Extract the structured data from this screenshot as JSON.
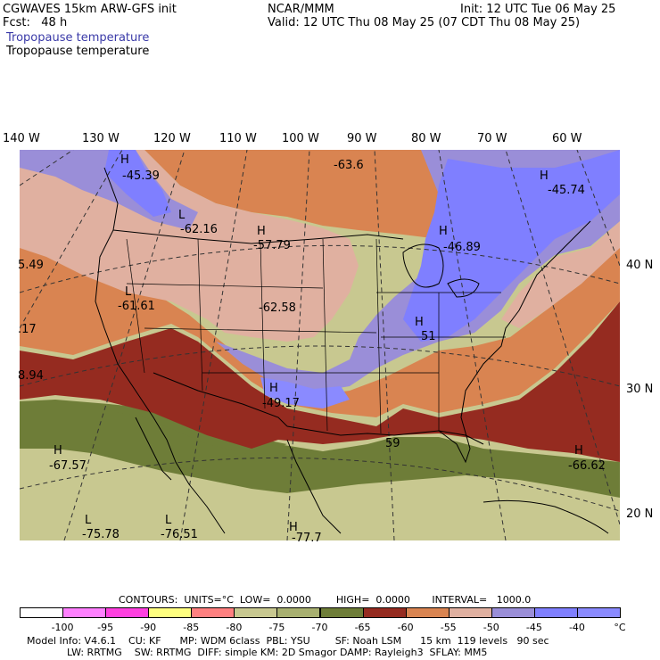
{
  "header": {
    "left1": "CGWAVES 15km ARW-GFS init",
    "left2": "Fcst:   48 h",
    "center": "NCAR/MMM",
    "init": "Init: 12 UTC Tue 06 May 25",
    "valid": "Valid: 12 UTC Thu 08 May 25 (07 CDT Thu 08 May 25)",
    "field_label_blue": "Tropopause temperature",
    "field_label_black": "Tropopause temperature"
  },
  "lon_labels": [
    "140 W",
    "130 W",
    "120 W",
    "110 W",
    "100 W",
    "90 W",
    "80 W",
    "70 W",
    "60 W"
  ],
  "lat_labels": [
    "40 N",
    "30 N",
    "20 N"
  ],
  "map_labels": [
    {
      "letter": "H",
      "value": "-45.39"
    },
    {
      "letter": "",
      "value": "-63.6"
    },
    {
      "letter": "H",
      "value": "-45.74"
    },
    {
      "letter": "L",
      "value": "-62.16"
    },
    {
      "letter": "H",
      "value": "-57.79"
    },
    {
      "letter": "H",
      "value": "-46.89"
    },
    {
      "letter": "",
      "value": "5.49"
    },
    {
      "letter": "L",
      "value": "-61.61"
    },
    {
      "letter": "",
      "value": "-62.58"
    },
    {
      "letter": "H",
      "value": "51"
    },
    {
      "letter": "",
      "value": ".17"
    },
    {
      "letter": "",
      "value": "8.94"
    },
    {
      "letter": "H",
      "value": "-49.17"
    },
    {
      "letter": "",
      "value": "59"
    },
    {
      "letter": "H",
      "value": "-67.57"
    },
    {
      "letter": "H",
      "value": "-66.62"
    },
    {
      "letter": "L",
      "value": "-75.78"
    },
    {
      "letter": "L",
      "value": "-76.51"
    },
    {
      "letter": "H",
      "value": "-77.7"
    }
  ],
  "contour_info": {
    "text": "CONTOURS:  UNITS=°C  LOW=  0.0000        HIGH=  0.0000       INTERVAL=   1000.0"
  },
  "colorbar": {
    "colors": [
      "#ffffff",
      "#ff80ff",
      "#ff40e0",
      "#ffff80",
      "#ff8080",
      "#c8c890",
      "#a8b070",
      "#6e7d38",
      "#952b20",
      "#d98451",
      "#e0b0a0",
      "#9a8ed8",
      "#7f7fff",
      "#8a8aff"
    ],
    "labels": [
      "-100",
      "-95",
      "-90",
      "-85",
      "-80",
      "-75",
      "-70",
      "-65",
      "-60",
      "-55",
      "-50",
      "-45",
      "-40",
      "°C"
    ]
  },
  "footer": {
    "line1": "Model Info: V4.6.1    CU: KF      MP: WDM 6class  PBL: YSU        SF: Noah LSM      15 km  119 levels   90 sec",
    "line2": "LW: RRTMG    SW: RRTMG  DIFF: simple KM: 2D Smagor DAMP: Rayleigh3  SFLAY: MM5"
  },
  "legend_colors": {
    "olive": "#6e7d38",
    "khaki": "#c8c890",
    "brickred": "#952b20",
    "orange": "#d98451",
    "salmon": "#e0b0a0",
    "lavender": "#9a8ed8",
    "blue": "#7f7fff"
  }
}
